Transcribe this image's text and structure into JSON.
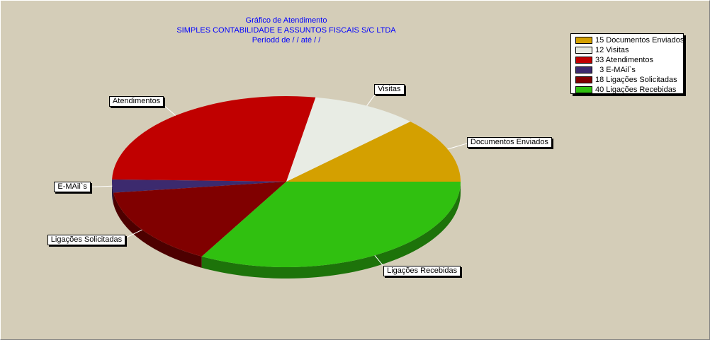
{
  "chart_data": {
    "type": "pie",
    "title": "Gráfico de Atendimento",
    "subtitle": "SIMPLES CONTABILIDADE E ASSUNTOS FISCAIS S/C LTDA",
    "period_line": "Períodd de    /  /      até   /  /",
    "categories": [
      "Documentos Enviados",
      "Visitas",
      "Atendimentos",
      "E-MAil`s",
      "Ligações Solicitadas",
      "Ligações Recebidas"
    ],
    "values": [
      15,
      12,
      33,
      3,
      18,
      40
    ],
    "legend": [
      "15 Documentos Enviados",
      "12 Visitas",
      "33 Atendimentos",
      "  3 E-MAil`s",
      "18 Ligações Solicitadas",
      "40 Ligações Recebidas"
    ],
    "colors": [
      "#d4a000",
      "#e8ece4",
      "#c00000",
      "#3c2a6e",
      "#800000",
      "#30c010"
    ],
    "legend_position": "top-right",
    "grid": false
  }
}
